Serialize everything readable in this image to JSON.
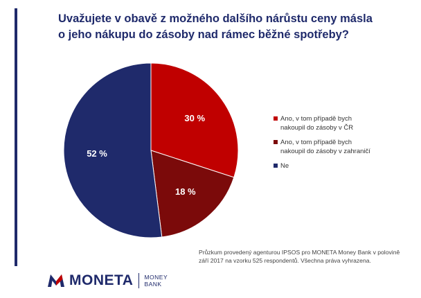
{
  "chart_data": {
    "type": "pie",
    "title_lines": [
      "Uvažujete v obavě z možného dalšího nárůstu ceny másla",
      "o jeho nákupu do zásoby nad rámec běžné spotřeby?"
    ],
    "slices": [
      {
        "label": "Ano, v tom případě bych\nnakoupil do zásoby v ČR",
        "value": 30,
        "display": "30 %",
        "color": "#c00000"
      },
      {
        "label": "Ano, v tom případě bych\nnakoupil do zásoby v zahraničí",
        "value": 18,
        "display": "18 %",
        "color": "#7b0a0a"
      },
      {
        "label": "Ne",
        "value": 52,
        "display": "52 %",
        "color": "#1f2a6b"
      }
    ],
    "legend_position": "right"
  },
  "footnote": "Průzkum provedený agenturou IPSOS pro MONETA Money Bank v polovině\nzáří 2017 na vzorku 525 respondentů. Všechna práva vyhrazena.",
  "logo": {
    "wordmark": "MONETA",
    "sub_line1": "MONEY",
    "sub_line2": "BANK",
    "icon": "moneta-m-icon",
    "color": "#1f2a6b",
    "accent_color": "#c00000"
  }
}
